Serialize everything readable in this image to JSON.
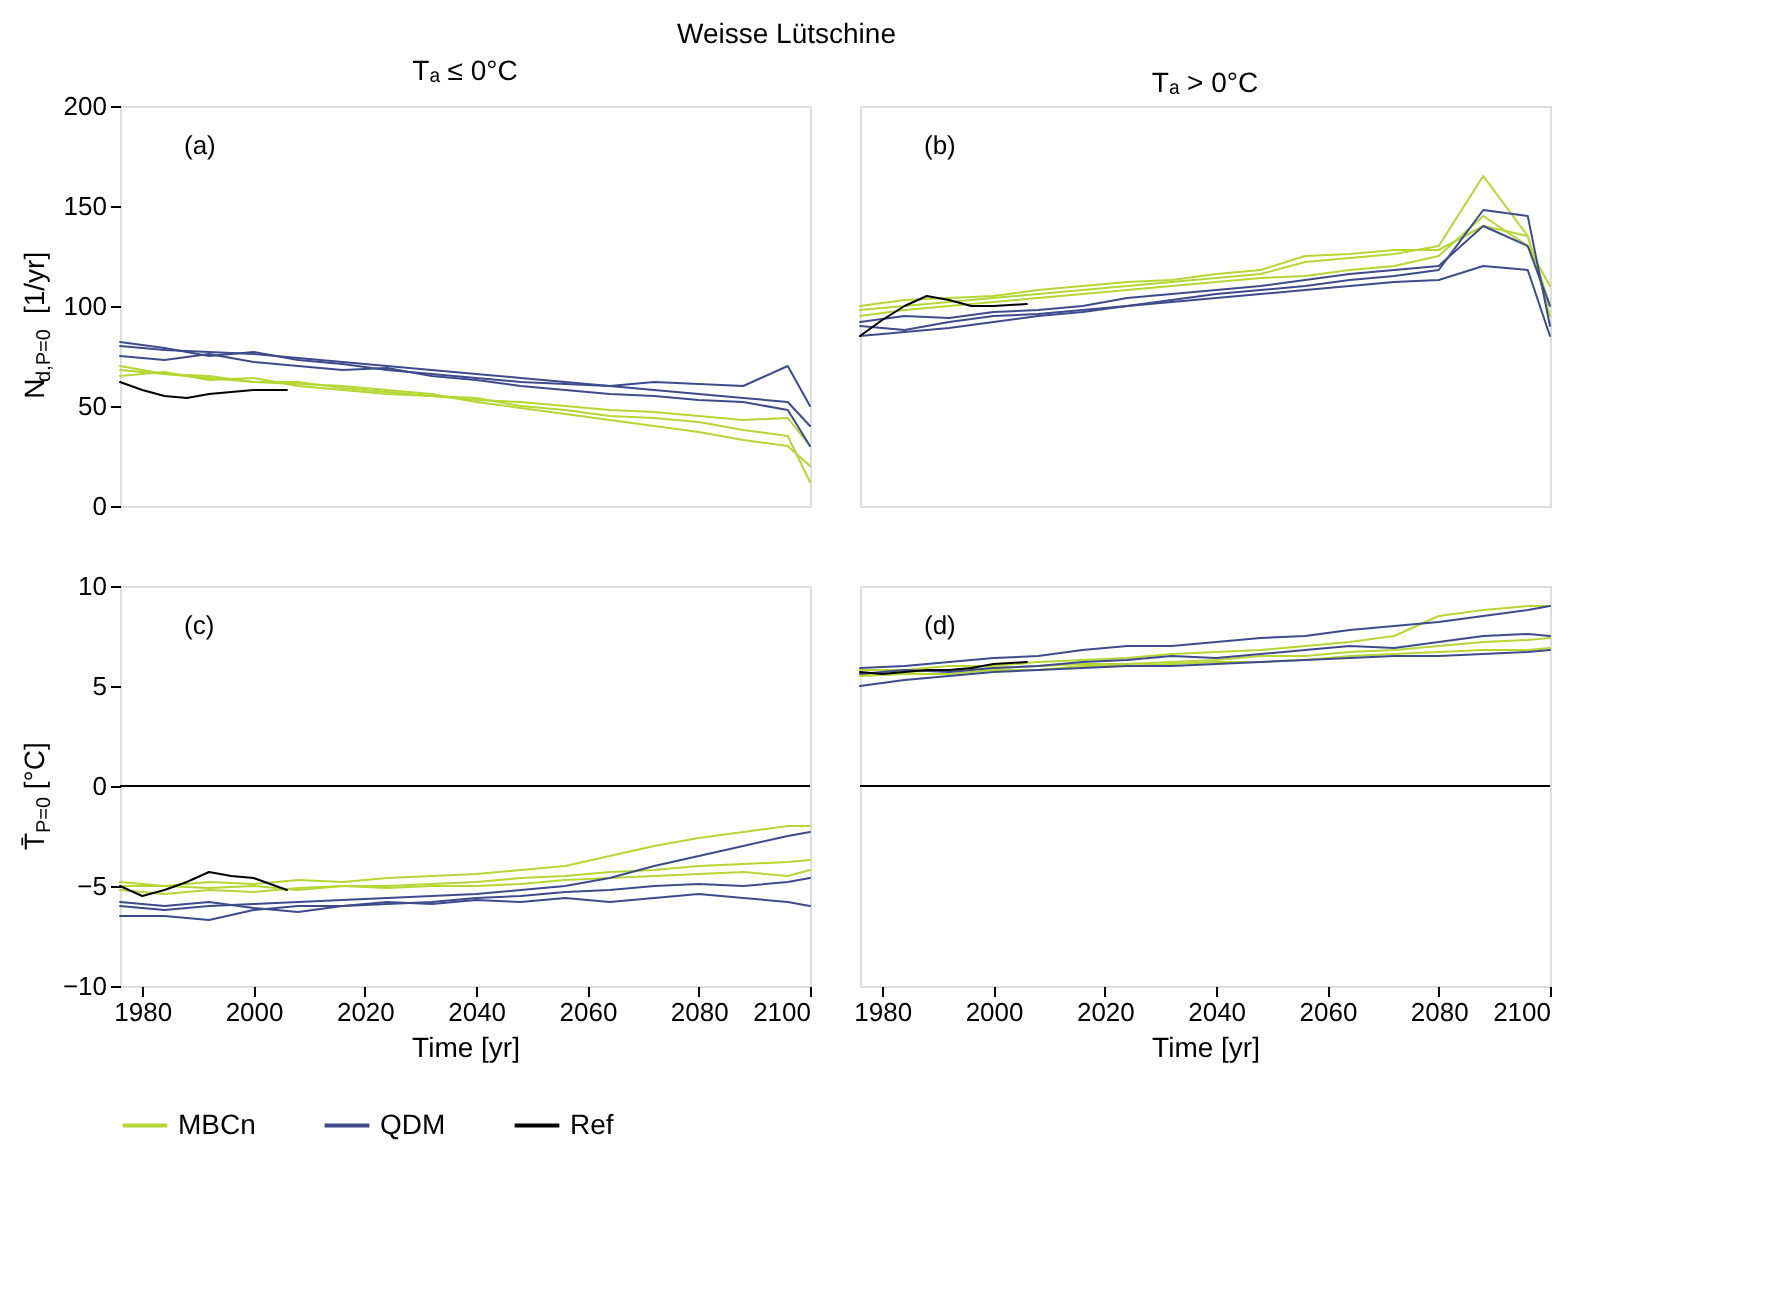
{
  "chart_data": [
    {
      "type": "line",
      "title": "Tₐ ≤ 0°C",
      "ylabel": "N$_{d,P=0}$ [1/yr]",
      "annotations": [
        "(a)",
        "Weisse Lütschine"
      ],
      "tick_labels": "y",
      "legend": "bottom",
      "grid": false,
      "x": [
        1976,
        1984,
        1992,
        2000,
        2008,
        2016,
        2024,
        2032,
        2040,
        2048,
        2056,
        2064,
        2072,
        2080,
        2088,
        2096,
        2100
      ],
      "xlim": [
        1976,
        2100
      ],
      "ylim": [
        0,
        200
      ],
      "yticks": [
        0,
        50,
        100,
        150,
        200
      ],
      "series": [
        {
          "name": "MBCn",
          "color": "#b5d633",
          "values": [
            68,
            66,
            64,
            62,
            61,
            60,
            58,
            56,
            52,
            49,
            46,
            43,
            40,
            37,
            33,
            30,
            20
          ]
        },
        {
          "color": "#b5d633",
          "values": [
            65,
            67,
            63,
            64,
            60,
            58,
            56,
            55,
            54,
            50,
            48,
            45,
            44,
            42,
            38,
            35,
            12
          ]
        },
        {
          "color": "#b5d633",
          "values": [
            70,
            66,
            65,
            62,
            62,
            59,
            57,
            55,
            53,
            52,
            50,
            48,
            47,
            45,
            43,
            44,
            30
          ]
        },
        {
          "name": "QDM",
          "color": "#3d4b8c",
          "values": [
            80,
            78,
            77,
            76,
            74,
            72,
            70,
            68,
            66,
            64,
            62,
            60,
            58,
            56,
            54,
            52,
            40
          ]
        },
        {
          "color": "#3d4b8c",
          "values": [
            75,
            73,
            76,
            72,
            70,
            68,
            69,
            65,
            63,
            60,
            58,
            56,
            55,
            53,
            52,
            48,
            30
          ]
        },
        {
          "color": "#3d4b8c",
          "values": [
            82,
            79,
            75,
            77,
            73,
            71,
            68,
            66,
            64,
            62,
            61,
            60,
            62,
            61,
            60,
            70,
            50
          ]
        },
        {
          "name": "Ref",
          "color": "#000000",
          "x": [
            1976,
            1980,
            1984,
            1988,
            1992,
            1996,
            2000,
            2006
          ],
          "values": [
            62,
            58,
            55,
            54,
            56,
            57,
            58,
            58
          ]
        }
      ]
    },
    {
      "type": "line",
      "title": "Tₐ > 0°C",
      "annotations": [
        "(b)"
      ],
      "tick_labels": false,
      "grid": false,
      "x": [
        1976,
        1984,
        1992,
        2000,
        2008,
        2016,
        2024,
        2032,
        2040,
        2048,
        2056,
        2064,
        2072,
        2080,
        2088,
        2096,
        2100
      ],
      "xlim": [
        1976,
        2100
      ],
      "ylim": [
        0,
        200
      ],
      "series": [
        {
          "color": "#b5d633",
          "values": [
            98,
            100,
            102,
            104,
            106,
            108,
            110,
            112,
            114,
            116,
            122,
            124,
            126,
            130,
            165,
            135,
            100
          ]
        },
        {
          "color": "#b5d633",
          "values": [
            95,
            98,
            100,
            102,
            104,
            106,
            108,
            110,
            112,
            114,
            115,
            118,
            120,
            125,
            145,
            130,
            110
          ]
        },
        {
          "color": "#b5d633",
          "values": [
            100,
            103,
            104,
            105,
            108,
            110,
            112,
            113,
            116,
            118,
            125,
            126,
            128,
            128,
            140,
            135,
            95
          ]
        },
        {
          "color": "#3d4b8c",
          "values": [
            90,
            88,
            92,
            95,
            96,
            98,
            100,
            103,
            106,
            108,
            110,
            113,
            115,
            118,
            148,
            145,
            90
          ]
        },
        {
          "color": "#3d4b8c",
          "values": [
            85,
            87,
            89,
            92,
            95,
            97,
            100,
            102,
            104,
            106,
            108,
            110,
            112,
            113,
            120,
            118,
            85
          ]
        },
        {
          "color": "#3d4b8c",
          "values": [
            92,
            95,
            94,
            97,
            98,
            100,
            104,
            106,
            108,
            110,
            113,
            116,
            118,
            120,
            140,
            130,
            100
          ]
        },
        {
          "color": "#000000",
          "x": [
            1976,
            1980,
            1984,
            1988,
            1992,
            1996,
            2000,
            2006
          ],
          "values": [
            85,
            93,
            100,
            105,
            103,
            100,
            100,
            101
          ]
        }
      ]
    },
    {
      "type": "line",
      "xlabel": "Time [yr]",
      "ylabel": "T̄$_{P=0}$ [°C]",
      "annotations": [
        "(c)"
      ],
      "grid": false,
      "x": [
        1976,
        1984,
        1992,
        2000,
        2008,
        2016,
        2024,
        2032,
        2040,
        2048,
        2056,
        2064,
        2072,
        2080,
        2088,
        2096,
        2100
      ],
      "xlim": [
        1976,
        2100
      ],
      "xticks": [
        1980,
        2000,
        2020,
        2040,
        2060,
        2080,
        2100
      ],
      "ylim": [
        -10,
        10
      ],
      "yticks": [
        -10,
        -5,
        0,
        5,
        10
      ],
      "ref_lines": [
        {
          "axis": "y",
          "value": 0,
          "color": "#000000"
        }
      ],
      "series": [
        {
          "color": "#b5d633",
          "values": [
            -5,
            -5,
            -4.8,
            -4.9,
            -4.7,
            -4.8,
            -4.6,
            -4.5,
            -4.4,
            -4.2,
            -4,
            -3.5,
            -3,
            -2.6,
            -2.3,
            -2,
            -2
          ]
        },
        {
          "color": "#b5d633",
          "values": [
            -5.2,
            -5.4,
            -5.2,
            -5.3,
            -5.1,
            -5,
            -5,
            -4.9,
            -4.8,
            -4.6,
            -4.5,
            -4.3,
            -4.2,
            -4,
            -3.9,
            -3.8,
            -3.7
          ]
        },
        {
          "color": "#b5d633",
          "values": [
            -4.8,
            -5,
            -5.1,
            -5,
            -5.2,
            -5,
            -5.1,
            -5,
            -5,
            -4.9,
            -4.7,
            -4.6,
            -4.5,
            -4.4,
            -4.3,
            -4.5,
            -4.2
          ]
        },
        {
          "color": "#3d4b8c",
          "values": [
            -6,
            -6.2,
            -6,
            -5.9,
            -5.8,
            -5.7,
            -5.6,
            -5.5,
            -5.4,
            -5.2,
            -5,
            -4.6,
            -4,
            -3.5,
            -3,
            -2.5,
            -2.3
          ]
        },
        {
          "color": "#3d4b8c",
          "values": [
            -6.5,
            -6.5,
            -6.7,
            -6.2,
            -6,
            -6,
            -5.9,
            -5.8,
            -5.6,
            -5.5,
            -5.3,
            -5.2,
            -5,
            -4.9,
            -5,
            -4.8,
            -4.6
          ]
        },
        {
          "color": "#3d4b8c",
          "values": [
            -5.8,
            -6,
            -5.8,
            -6.1,
            -6.3,
            -6,
            -5.8,
            -5.9,
            -5.7,
            -5.8,
            -5.6,
            -5.8,
            -5.6,
            -5.4,
            -5.6,
            -5.8,
            -6
          ]
        },
        {
          "color": "#000000",
          "x": [
            1976,
            1980,
            1984,
            1988,
            1992,
            1996,
            2000,
            2006
          ],
          "values": [
            -5,
            -5.5,
            -5.2,
            -4.8,
            -4.3,
            -4.5,
            -4.6,
            -5.2
          ]
        }
      ]
    },
    {
      "type": "line",
      "xlabel": "Time [yr]",
      "annotations": [
        "(d)"
      ],
      "tick_labels": "x",
      "grid": false,
      "x": [
        1976,
        1984,
        1992,
        2000,
        2008,
        2016,
        2024,
        2032,
        2040,
        2048,
        2056,
        2064,
        2072,
        2080,
        2088,
        2096,
        2100
      ],
      "xlim": [
        1976,
        2100
      ],
      "xticks": [
        1980,
        2000,
        2020,
        2040,
        2060,
        2080,
        2100
      ],
      "ylim": [
        -10,
        10
      ],
      "ref_lines": [
        {
          "axis": "y",
          "value": 0,
          "color": "#000000"
        }
      ],
      "series": [
        {
          "color": "#b5d633",
          "values": [
            5.8,
            5.8,
            6,
            6,
            6.2,
            6.3,
            6.4,
            6.6,
            6.7,
            6.8,
            7,
            7.2,
            7.5,
            8.5,
            8.8,
            9,
            9
          ]
        },
        {
          "color": "#b5d633",
          "values": [
            5.6,
            5.7,
            5.8,
            5.9,
            6,
            6.1,
            6.1,
            6.2,
            6.3,
            6.5,
            6.5,
            6.7,
            6.8,
            7,
            7.2,
            7.3,
            7.4
          ]
        },
        {
          "color": "#b5d633",
          "values": [
            5.5,
            5.6,
            5.6,
            5.8,
            5.8,
            6,
            6,
            6.1,
            6.2,
            6.2,
            6.3,
            6.5,
            6.6,
            6.7,
            6.8,
            6.8,
            6.9
          ]
        },
        {
          "color": "#3d4b8c",
          "values": [
            5.9,
            6,
            6.2,
            6.4,
            6.5,
            6.8,
            7,
            7,
            7.2,
            7.4,
            7.5,
            7.8,
            8,
            8.2,
            8.5,
            8.8,
            9
          ]
        },
        {
          "color": "#3d4b8c",
          "values": [
            5,
            5.3,
            5.5,
            5.7,
            5.8,
            5.9,
            6,
            6,
            6.1,
            6.2,
            6.3,
            6.4,
            6.5,
            6.5,
            6.6,
            6.7,
            6.8
          ]
        },
        {
          "color": "#3d4b8c",
          "values": [
            5.6,
            5.8,
            5.7,
            5.9,
            6,
            6.2,
            6.3,
            6.5,
            6.4,
            6.6,
            6.8,
            7,
            6.9,
            7.2,
            7.5,
            7.6,
            7.5
          ]
        },
        {
          "color": "#000000",
          "x": [
            1976,
            1980,
            1984,
            1988,
            1992,
            1996,
            2000,
            2006
          ],
          "values": [
            5.7,
            5.6,
            5.7,
            5.8,
            5.8,
            5.9,
            6.1,
            6.2
          ]
        }
      ]
    }
  ]
}
